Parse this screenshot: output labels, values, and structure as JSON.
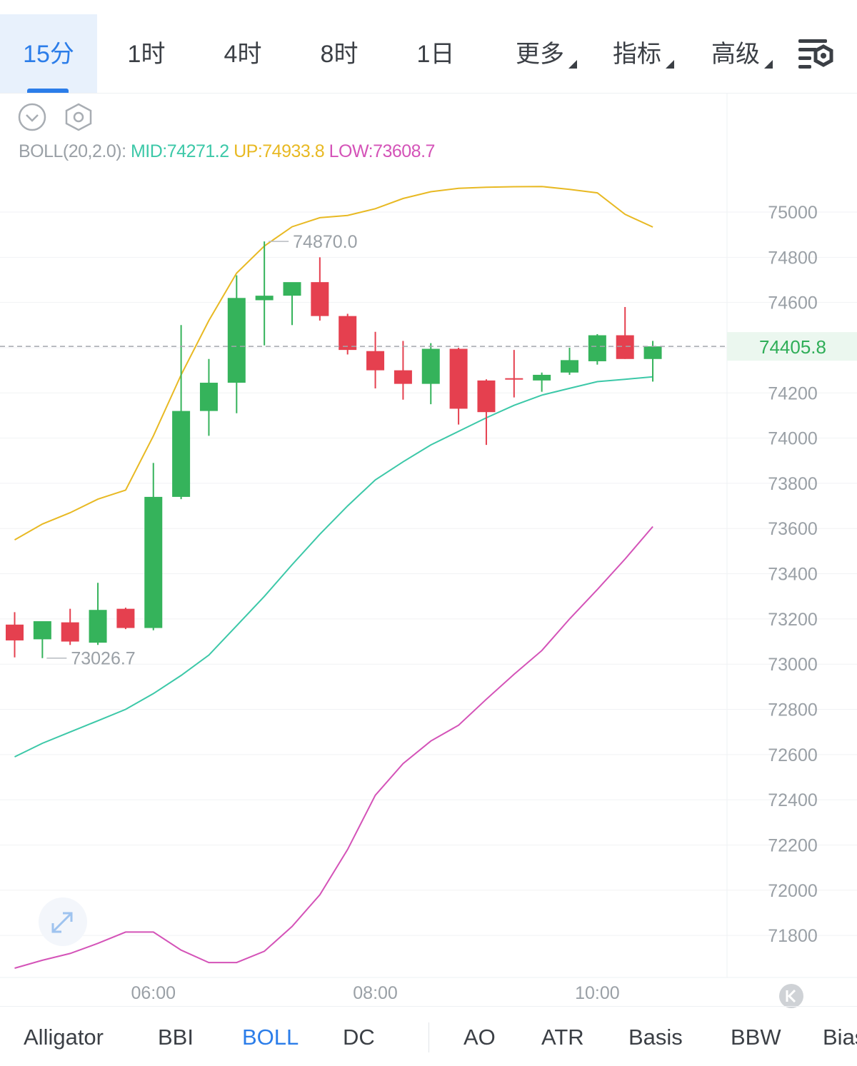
{
  "timeframes": [
    {
      "label": "15分",
      "active": true
    },
    {
      "label": "1时",
      "active": false
    },
    {
      "label": "4时",
      "active": false
    },
    {
      "label": "8时",
      "active": false
    },
    {
      "label": "1日",
      "active": false
    },
    {
      "label": "更多",
      "active": false,
      "dropdown": true
    },
    {
      "label": "指标",
      "active": false,
      "dropdown": true
    },
    {
      "label": "高级",
      "active": false,
      "dropdown": true
    }
  ],
  "legend": {
    "name": "BOLL(20,2.0):",
    "mid_label": "MID:",
    "mid_value": "74271.2",
    "up_label": "UP:",
    "up_value": "74933.8",
    "low_label": "LOW:",
    "low_value": "73608.7"
  },
  "colors": {
    "up": "#35b35b",
    "down": "#e5404f",
    "mid": "#3cc8a8",
    "upper": "#e8b923",
    "lower": "#d453b8",
    "accent": "#2b7de9",
    "last_price_bg": "#ebf7ef",
    "last_price_text": "#2fae58"
  },
  "icons": {
    "collapse": "chevron-down-circle-icon",
    "settings": "hexagon-settings-icon",
    "expand": "expand-arrows-icon",
    "chart_settings": "chart-settings-icon",
    "scroll_latest": "scroll-to-latest-icon"
  },
  "indicators": [
    {
      "label": "Alligator",
      "active": false
    },
    {
      "label": "BBI",
      "active": false
    },
    {
      "label": "BOLL",
      "active": true
    },
    {
      "label": "DC",
      "active": false
    },
    {
      "label": "AO",
      "active": false
    },
    {
      "label": "ATR",
      "active": false
    },
    {
      "label": "Basis",
      "active": false
    },
    {
      "label": "BBW",
      "active": false
    },
    {
      "label": "Bias",
      "active": false
    }
  ],
  "chart_data": {
    "type": "candlestick",
    "ylim": [
      71600,
      75400
    ],
    "y_ticks": [
      75000,
      74800,
      74600,
      74400,
      74200,
      74000,
      73800,
      73600,
      73400,
      73200,
      73000,
      72800,
      72600,
      72400,
      72200,
      72000,
      71800
    ],
    "y_tick_labels": [
      "75000",
      "74800",
      "74600",
      "",
      "74200",
      "74000",
      "73800",
      "73600",
      "73400",
      "73200",
      "73000",
      "72800",
      "72600",
      "72400",
      "72200",
      "72000",
      "71800"
    ],
    "x_labels": [
      {
        "index": 5,
        "label": "06:00"
      },
      {
        "index": 13,
        "label": "08:00"
      },
      {
        "index": 21,
        "label": "10:00"
      }
    ],
    "last_price": 74405.8,
    "last_price_label": "74405.8",
    "high_annotation": {
      "index": 9,
      "value": 74870.0,
      "label": "74870.0"
    },
    "low_annotation": {
      "index": 1,
      "value": 73026.7,
      "label": "73026.7"
    },
    "candles": [
      {
        "o": 73175,
        "h": 73230,
        "l": 73030,
        "c": 73105
      },
      {
        "o": 73110,
        "h": 73180,
        "l": 73026.7,
        "c": 73190
      },
      {
        "o": 73185,
        "h": 73245,
        "l": 73085,
        "c": 73100
      },
      {
        "o": 73095,
        "h": 73360,
        "l": 73085,
        "c": 73240
      },
      {
        "o": 73245,
        "h": 73250,
        "l": 73155,
        "c": 73160
      },
      {
        "o": 73160,
        "h": 73890,
        "l": 73150,
        "c": 73740
      },
      {
        "o": 73740,
        "h": 74500,
        "l": 73730,
        "c": 74120
      },
      {
        "o": 74120,
        "h": 74350,
        "l": 74010,
        "c": 74245
      },
      {
        "o": 74245,
        "h": 74720,
        "l": 74110,
        "c": 74620
      },
      {
        "o": 74610,
        "h": 74870,
        "l": 74410,
        "c": 74630
      },
      {
        "o": 74630,
        "h": 74680,
        "l": 74500,
        "c": 74690
      },
      {
        "o": 74690,
        "h": 74800,
        "l": 74520,
        "c": 74540
      },
      {
        "o": 74540,
        "h": 74550,
        "l": 74370,
        "c": 74390
      },
      {
        "o": 74385,
        "h": 74470,
        "l": 74220,
        "c": 74300
      },
      {
        "o": 74300,
        "h": 74430,
        "l": 74170,
        "c": 74240
      },
      {
        "o": 74240,
        "h": 74420,
        "l": 74150,
        "c": 74395
      },
      {
        "o": 74395,
        "h": 74400,
        "l": 74060,
        "c": 74130
      },
      {
        "o": 74255,
        "h": 74260,
        "l": 73970,
        "c": 74115
      },
      {
        "o": 74265,
        "h": 74390,
        "l": 74180,
        "c": 74260
      },
      {
        "o": 74255,
        "h": 74290,
        "l": 74205,
        "c": 74280
      },
      {
        "o": 74290,
        "h": 74400,
        "l": 74280,
        "c": 74345
      },
      {
        "o": 74340,
        "h": 74460,
        "l": 74325,
        "c": 74455
      },
      {
        "o": 74455,
        "h": 74580,
        "l": 74350,
        "c": 74350
      },
      {
        "o": 74350,
        "h": 74430,
        "l": 74250,
        "c": 74405.8
      }
    ],
    "series": [
      {
        "name": "UP",
        "values": [
          73550,
          73620,
          73670,
          73730,
          73770,
          74010,
          74280,
          74520,
          74730,
          74850,
          74935,
          74975,
          74985,
          75015,
          75060,
          75090,
          75105,
          75110,
          75112,
          75113,
          75100,
          75085,
          74990,
          74933.8
        ]
      },
      {
        "name": "MID",
        "values": [
          72590,
          72650,
          72700,
          72750,
          72800,
          72870,
          72950,
          73040,
          73170,
          73300,
          73440,
          73575,
          73700,
          73815,
          73895,
          73970,
          74030,
          74090,
          74145,
          74190,
          74220,
          74250,
          74260,
          74271.2
        ]
      },
      {
        "name": "LOW",
        "values": [
          71655,
          71690,
          71720,
          71765,
          71815,
          71815,
          71735,
          71680,
          71680,
          71730,
          71840,
          71980,
          72180,
          72420,
          72560,
          72660,
          72730,
          72845,
          72955,
          73060,
          73200,
          73330,
          73465,
          73608.7
        ]
      }
    ]
  }
}
